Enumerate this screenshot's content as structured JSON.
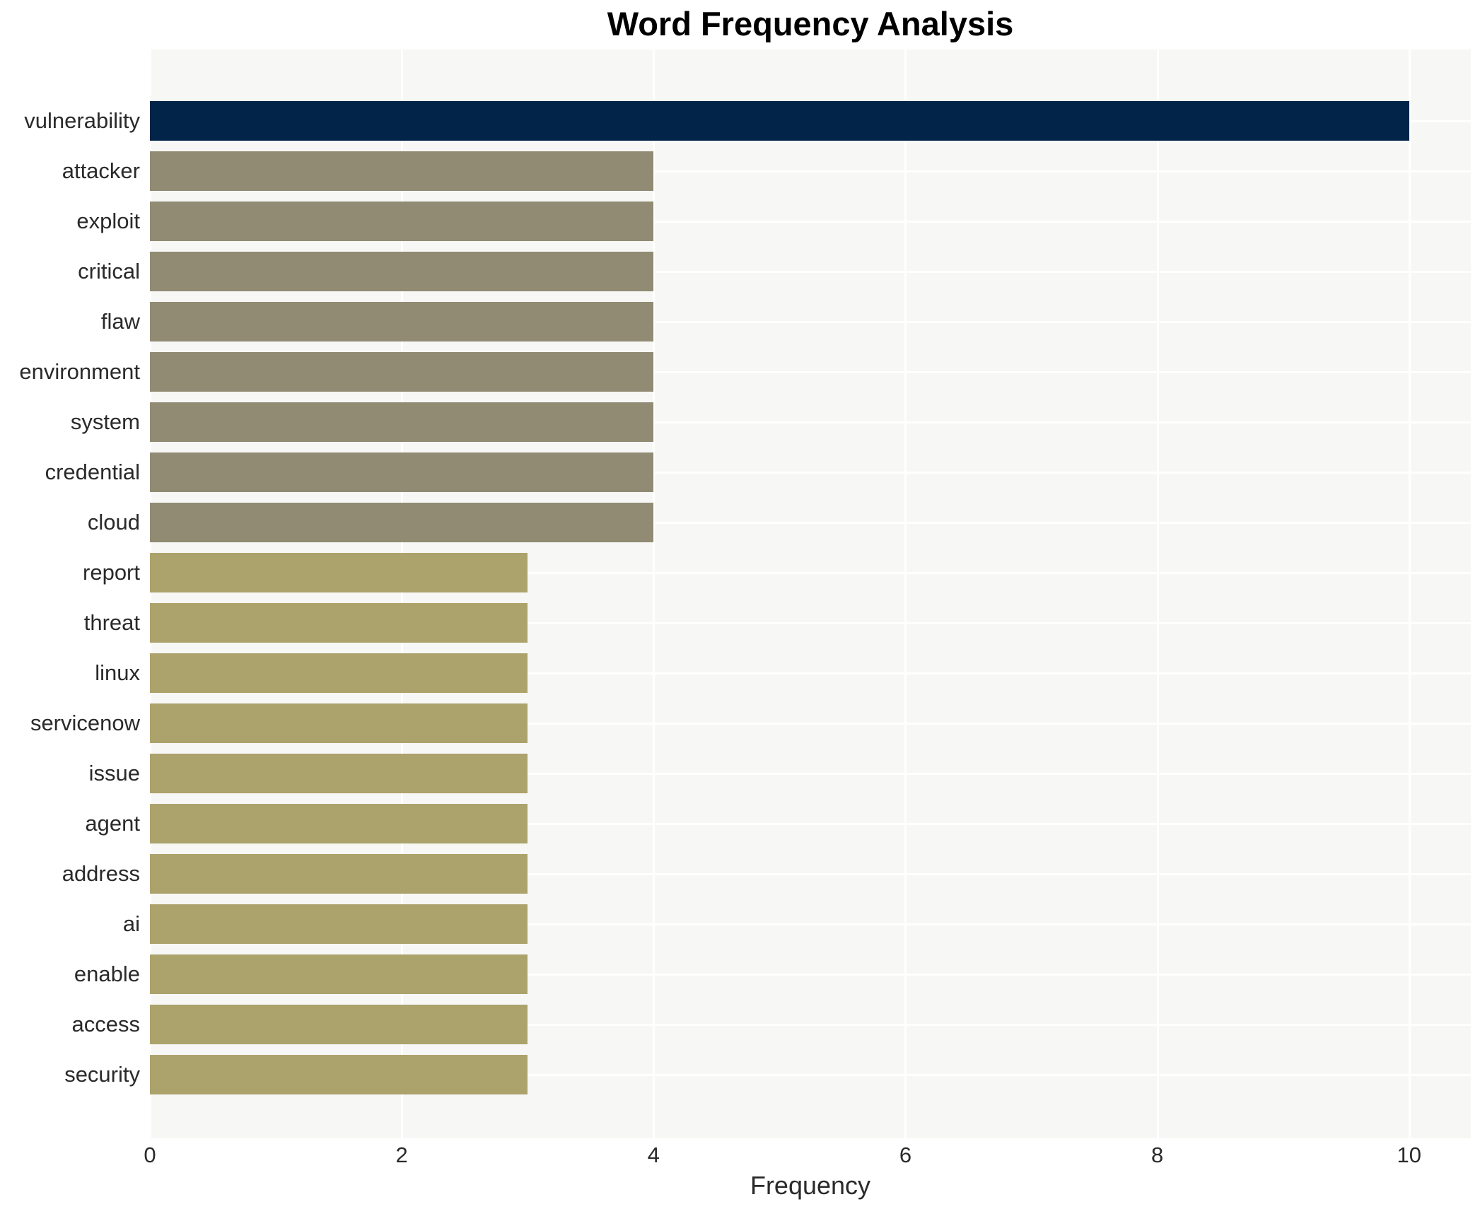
{
  "chart_data": {
    "type": "bar",
    "orientation": "horizontal",
    "title": "Word Frequency Analysis",
    "xlabel": "Frequency",
    "ylabel": "",
    "categories": [
      "vulnerability",
      "attacker",
      "exploit",
      "critical",
      "flaw",
      "environment",
      "system",
      "credential",
      "cloud",
      "report",
      "threat",
      "linux",
      "servicenow",
      "issue",
      "agent",
      "address",
      "ai",
      "enable",
      "access",
      "security"
    ],
    "values": [
      10,
      4,
      4,
      4,
      4,
      4,
      4,
      4,
      4,
      3,
      3,
      3,
      3,
      3,
      3,
      3,
      3,
      3,
      3,
      3
    ],
    "xticks": [
      "0",
      "2",
      "4",
      "6",
      "8",
      "10"
    ],
    "xtick_values": [
      0,
      2,
      4,
      6,
      8,
      10
    ],
    "xlim": [
      0,
      10.49
    ],
    "grid": true,
    "legend_position": "none",
    "colors": {
      "bar_value_10": "#032449",
      "bar_value_4": "#918b74",
      "bar_value_3": "#aca26b",
      "plot_background": "#f7f7f5",
      "gridline": "#ffffff",
      "tick_text": "#2a2a2a",
      "title_text": "#000000",
      "page_background": "#ffffff"
    }
  }
}
